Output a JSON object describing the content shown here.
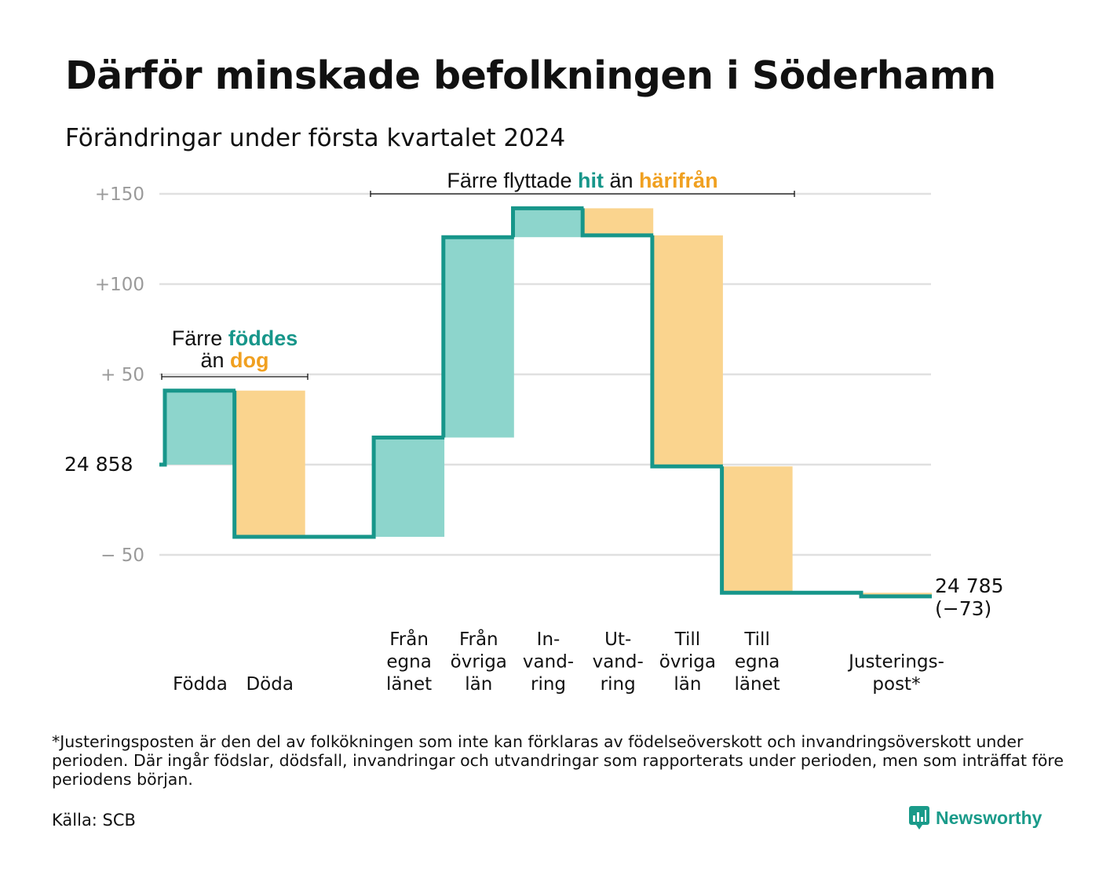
{
  "title": "Därför minskade befolkningen i Söderhamn",
  "subtitle": "Förändringar under första kvartalet 2024",
  "colors": {
    "increase": "#8dd5cc",
    "decrease": "#fad48e",
    "line": "#17968a",
    "teal_text": "#17968a",
    "orange_text": "#f0a020",
    "grid": "#e0e0e0",
    "axis_text": "#9a9a9a"
  },
  "chart_data": {
    "type": "waterfall",
    "start_label": "24 858",
    "start_value": 24858,
    "end_value": 24785,
    "end_label": "24 785",
    "end_change_label": "(−73)",
    "y_axis_relative_range": [
      -90,
      160
    ],
    "yticks": [
      {
        "value": 150,
        "label": "+150"
      },
      {
        "value": 100,
        "label": "+100"
      },
      {
        "value": 50,
        "label": "+  50"
      },
      {
        "value": 0,
        "label": ""
      },
      {
        "value": -50,
        "label": "−  50"
      }
    ],
    "steps": [
      {
        "label": [
          "",
          "",
          "Födda"
        ],
        "change": 41,
        "slot": 0
      },
      {
        "label": [
          "",
          "",
          "Döda"
        ],
        "change": -81,
        "slot": 1
      },
      {
        "label": [
          "Från",
          "egna",
          "länet"
        ],
        "change": 55,
        "slot": 3
      },
      {
        "label": [
          "Från",
          "övriga",
          "län"
        ],
        "change": 111,
        "slot": 4
      },
      {
        "label": [
          "In-",
          "vand-",
          "ring"
        ],
        "change": 16,
        "slot": 5
      },
      {
        "label": [
          "Ut-",
          "vand-",
          "ring"
        ],
        "change": -15,
        "slot": 6
      },
      {
        "label": [
          "Till",
          "övriga",
          "län"
        ],
        "change": -128,
        "slot": 7
      },
      {
        "label": [
          "Till",
          "egna",
          "länet"
        ],
        "change": -70,
        "slot": 8
      },
      {
        "label": [
          "",
          "Justerings-",
          "post*"
        ],
        "change": -2,
        "slot": 10
      }
    ],
    "annotations": [
      {
        "text_parts": [
          {
            "text": "Färre ",
            "style": "plain"
          },
          {
            "text": "föddes",
            "style": "teal"
          }
        ],
        "text_parts_2": [
          {
            "text": "än ",
            "style": "plain"
          },
          {
            "text": "dog",
            "style": "orange"
          }
        ],
        "bracket_slots": [
          0,
          1
        ]
      },
      {
        "text_parts": [
          {
            "text": "Färre flyttade ",
            "style": "plain"
          },
          {
            "text": "hit",
            "style": "teal"
          },
          {
            "text": " än ",
            "style": "plain"
          },
          {
            "text": "härifrån",
            "style": "orange"
          }
        ],
        "bracket_slots": [
          3,
          8
        ]
      }
    ]
  },
  "footnote": "*Justeringsposten är den del av folkökningen som inte kan förklaras av födelseöverskott och invandringsöverskott under perioden. Där ingår födslar, dödsfall, invandringar och utvandringar som rapporterats under perioden, men som inträffat före periodens början.",
  "source": "Källa: SCB",
  "logo": {
    "text": "Newsworthy",
    "icon": "bar-chart-speech-icon"
  }
}
